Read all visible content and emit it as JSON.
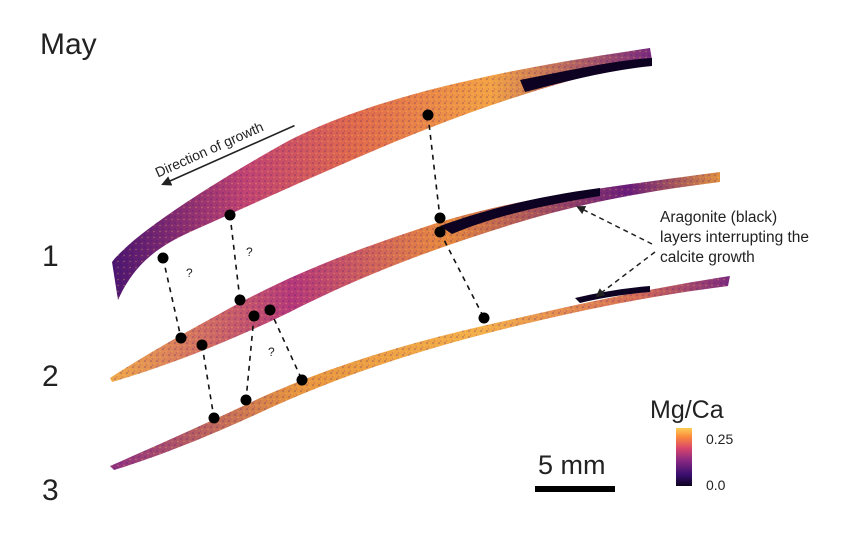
{
  "panel_label": "May",
  "layer_labels": [
    "1",
    "2",
    "3"
  ],
  "growth_label": "Direction of growth",
  "annotation_lines": [
    "Aragonite (black)",
    "layers interrupting the",
    "calcite growth"
  ],
  "question_mark": "?",
  "scale_bar_label": "5 mm",
  "colorbar": {
    "title": "Mg/Ca",
    "max_label": "0.25",
    "min_label": "0.0",
    "colors": [
      "#0d0221",
      "#3b0f70",
      "#8c2981",
      "#d8456c",
      "#fb8b3c",
      "#fcce55"
    ]
  }
}
